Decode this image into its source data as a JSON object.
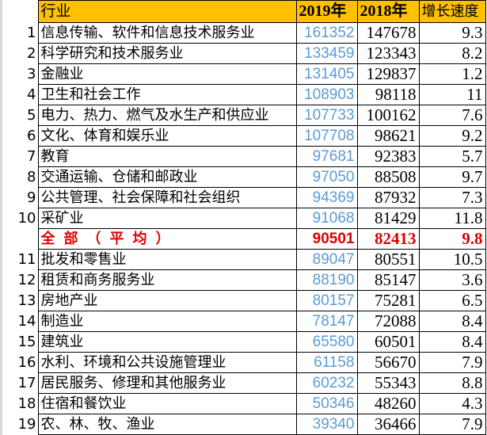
{
  "header": {
    "industry": "行业",
    "y2019": "2019年",
    "y2018": "2018年",
    "growth": "增长速度"
  },
  "colors": {
    "header_bg": "#ffc000",
    "value_2019": "#5b9bd5",
    "average_row": "#e00000"
  },
  "rows": [
    {
      "rank": "1",
      "industry": "信息传输、软件和信息技术服务业",
      "y2019": "161352",
      "y2018": "147678",
      "growth": "9.3"
    },
    {
      "rank": "2",
      "industry": "科学研究和技术服务业",
      "y2019": "133459",
      "y2018": "123343",
      "growth": "8.2"
    },
    {
      "rank": "3",
      "industry": "金融业",
      "y2019": "131405",
      "y2018": "129837",
      "growth": "1.2"
    },
    {
      "rank": "4",
      "industry": "卫生和社会工作",
      "y2019": "108903",
      "y2018": "98118",
      "growth": "11"
    },
    {
      "rank": "5",
      "industry": "电力、热力、燃气及水生产和供应业",
      "y2019": "107733",
      "y2018": "100162",
      "growth": "7.6"
    },
    {
      "rank": "6",
      "industry": "文化、体育和娱乐业",
      "y2019": "107708",
      "y2018": "98621",
      "growth": "9.2"
    },
    {
      "rank": "7",
      "industry": "教育",
      "y2019": "97681",
      "y2018": "92383",
      "growth": "5.7"
    },
    {
      "rank": "8",
      "industry": "交通运输、仓储和邮政业",
      "y2019": "97050",
      "y2018": "88508",
      "growth": "9.7"
    },
    {
      "rank": "9",
      "industry": "公共管理、社会保障和社会组织",
      "y2019": "94369",
      "y2018": "87932",
      "growth": "7.3"
    },
    {
      "rank": "10",
      "industry": "采矿业",
      "y2019": "91068",
      "y2018": "81429",
      "growth": "11.8"
    },
    {
      "rank": "",
      "industry": "全部（平均）",
      "y2019": "90501",
      "y2018": "82413",
      "growth": "9.8",
      "average": true
    },
    {
      "rank": "11",
      "industry": "批发和零售业",
      "y2019": "89047",
      "y2018": "80551",
      "growth": "10.5"
    },
    {
      "rank": "12",
      "industry": "租赁和商务服务业",
      "y2019": "88190",
      "y2018": "85147",
      "growth": "3.6"
    },
    {
      "rank": "13",
      "industry": "房地产业",
      "y2019": "80157",
      "y2018": "75281",
      "growth": "6.5"
    },
    {
      "rank": "14",
      "industry": "制造业",
      "y2019": "78147",
      "y2018": "72088",
      "growth": "8.4"
    },
    {
      "rank": "15",
      "industry": "建筑业",
      "y2019": "65580",
      "y2018": "60501",
      "growth": "8.4"
    },
    {
      "rank": "16",
      "industry": "水利、环境和公共设施管理业",
      "y2019": "61158",
      "y2018": "56670",
      "growth": "7.9"
    },
    {
      "rank": "17",
      "industry": "居民服务、修理和其他服务业",
      "y2019": "60232",
      "y2018": "55343",
      "growth": "8.8"
    },
    {
      "rank": "18",
      "industry": "住宿和餐饮业",
      "y2019": "50346",
      "y2018": "48260",
      "growth": "4.3"
    },
    {
      "rank": "19",
      "industry": "农、林、牧、渔业",
      "y2019": "39340",
      "y2018": "36466",
      "growth": "7.9"
    }
  ]
}
